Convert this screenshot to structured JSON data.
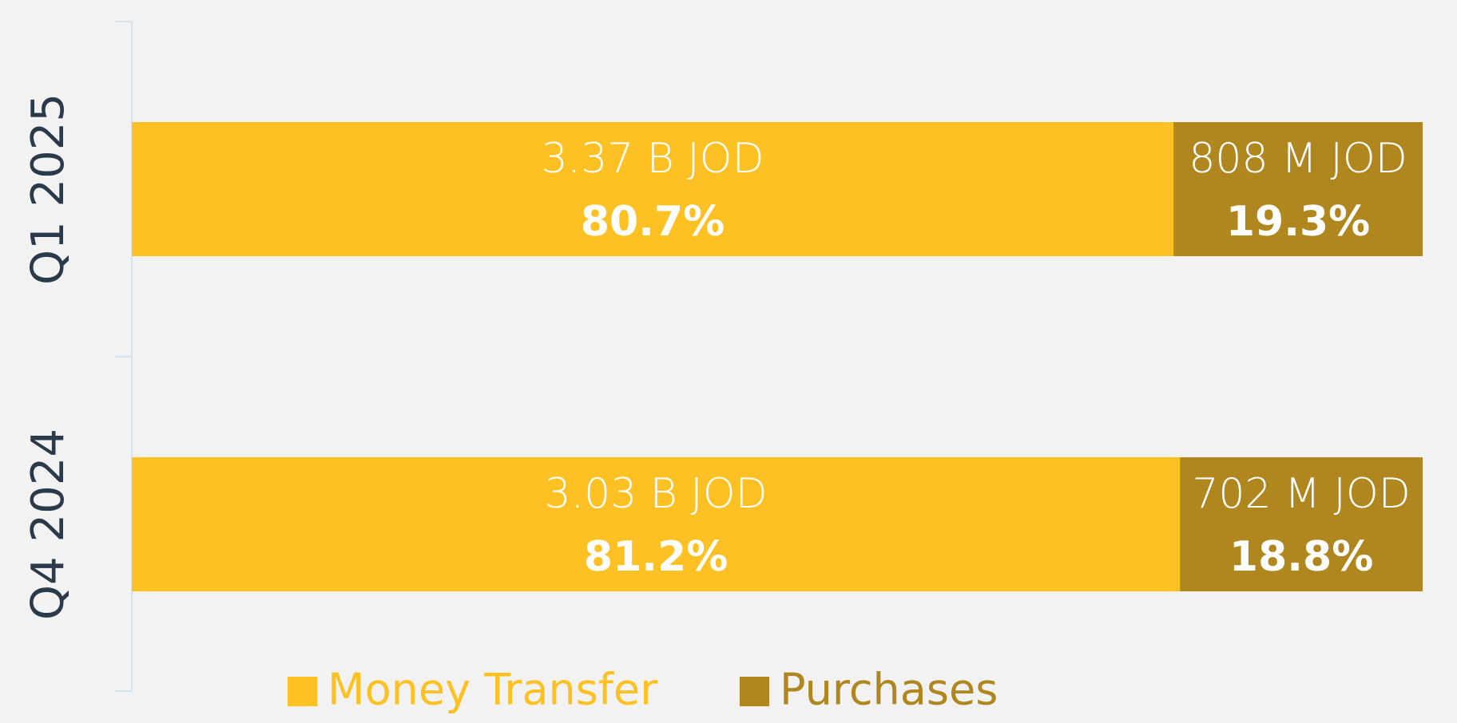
{
  "chart_data": {
    "type": "stacked-bar-horizontal",
    "categories": [
      "Q1 2025",
      "Q4 2024"
    ],
    "series": [
      {
        "name": "Money Transfer",
        "color": "#fec124",
        "values": [
          80.7,
          81.2
        ],
        "value_labels": [
          "80.7%",
          "81.2%"
        ],
        "amount_labels": [
          "3.37 B JOD",
          "3.03 B JOD"
        ]
      },
      {
        "name": "Purchases",
        "color": "#b0861f",
        "values": [
          19.3,
          18.8
        ],
        "value_labels": [
          "19.3%",
          "18.8%"
        ],
        "amount_labels": [
          "808 M JOD",
          "702 M JOD"
        ]
      }
    ],
    "xlim": [
      0,
      100
    ],
    "legend": "bottom"
  }
}
